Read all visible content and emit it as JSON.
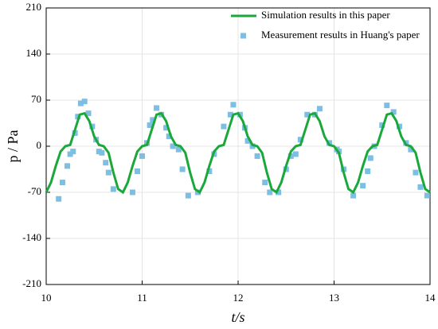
{
  "chart_data": {
    "type": "line",
    "xlabel": "t/s",
    "ylabel": "p / Pa",
    "xlim": [
      10,
      14
    ],
    "xticks": [
      10,
      11,
      12,
      13,
      14
    ],
    "ylim": [
      -210,
      210
    ],
    "yticks": [
      -210,
      -140,
      -70,
      0,
      70,
      140,
      210
    ],
    "grid": true,
    "legend": "upper right",
    "series": [
      {
        "name": "Simulation results in this paper",
        "color": "#1aa83a",
        "type": "line",
        "x": [
          10,
          10.05,
          10.1,
          10.15,
          10.2,
          10.25,
          10.3,
          10.35,
          10.4,
          10.45,
          10.5,
          10.55,
          10.6,
          10.65,
          10.7,
          10.75,
          10.8,
          10.85,
          10.9,
          10.95,
          11,
          11.05,
          11.1,
          11.15,
          11.2,
          11.25,
          11.3,
          11.35,
          11.4,
          11.45,
          11.5,
          11.55,
          11.6,
          11.65,
          11.7,
          11.75,
          11.8,
          11.85,
          11.9,
          11.95,
          12,
          12.05,
          12.1,
          12.15,
          12.2,
          12.25,
          12.3,
          12.35,
          12.4,
          12.45,
          12.5,
          12.55,
          12.6,
          12.65,
          12.7,
          12.75,
          12.8,
          12.85,
          12.9,
          12.95,
          13,
          13.05,
          13.1,
          13.15,
          13.2,
          13.25,
          13.3,
          13.35,
          13.4,
          13.45,
          13.5,
          13.55,
          13.6,
          13.65,
          13.7,
          13.75,
          13.8,
          13.85,
          13.9,
          13.95,
          14
        ],
        "values": [
          -70,
          -55,
          -30,
          -8,
          0,
          2,
          25,
          48,
          50,
          38,
          15,
          2,
          0,
          -10,
          -40,
          -65,
          -70,
          -55,
          -30,
          -8,
          0,
          2,
          25,
          48,
          50,
          38,
          15,
          2,
          0,
          -10,
          -40,
          -65,
          -70,
          -55,
          -30,
          -8,
          0,
          2,
          25,
          48,
          50,
          38,
          15,
          2,
          0,
          -10,
          -40,
          -65,
          -70,
          -55,
          -30,
          -8,
          0,
          2,
          25,
          48,
          50,
          38,
          15,
          2,
          0,
          -10,
          -40,
          -65,
          -70,
          -55,
          -30,
          -8,
          0,
          2,
          25,
          48,
          50,
          38,
          15,
          2,
          0,
          -10,
          -40,
          -65,
          -70
        ]
      },
      {
        "name": "Measurement results  in Huang's paper",
        "color": "#7dbfe2",
        "type": "scatter",
        "x": [
          10.13,
          10.17,
          10.22,
          10.25,
          10.28,
          10.3,
          10.33,
          10.36,
          10.4,
          10.44,
          10.48,
          10.52,
          10.55,
          10.58,
          10.62,
          10.65,
          10.7,
          10.9,
          10.95,
          11,
          11.05,
          11.08,
          11.11,
          11.15,
          11.2,
          11.25,
          11.28,
          11.32,
          11.38,
          11.42,
          11.48,
          11.58,
          11.7,
          11.75,
          11.85,
          11.92,
          11.95,
          12.02,
          12.07,
          12.1,
          12.15,
          12.2,
          12.28,
          12.33,
          12.42,
          12.5,
          12.55,
          12.6,
          12.65,
          12.72,
          12.8,
          12.85,
          12.95,
          13.03,
          13.05,
          13.1,
          13.2,
          13.3,
          13.35,
          13.38,
          13.42,
          13.5,
          13.55,
          13.62,
          13.68,
          13.75,
          13.8,
          13.85,
          13.9,
          13.97
        ],
        "values": [
          -80,
          -55,
          -30,
          -12,
          -8,
          20,
          45,
          65,
          68,
          50,
          30,
          10,
          -8,
          -10,
          -25,
          -40,
          -65,
          -70,
          -38,
          -15,
          5,
          32,
          40,
          58,
          48,
          28,
          15,
          0,
          -5,
          -35,
          -75,
          -70,
          -38,
          -12,
          30,
          48,
          63,
          48,
          28,
          8,
          0,
          -15,
          -55,
          -70,
          -70,
          -35,
          -15,
          -12,
          10,
          48,
          48,
          57,
          5,
          -5,
          -8,
          -35,
          -75,
          -60,
          -38,
          -18,
          0,
          32,
          62,
          52,
          30,
          5,
          -5,
          -40,
          -62,
          -75
        ]
      }
    ]
  }
}
